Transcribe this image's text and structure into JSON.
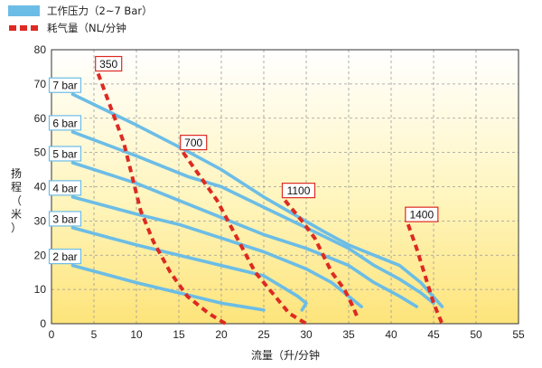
{
  "chart_data": {
    "type": "line",
    "xlabel": "流量（升/分钟",
    "ylabel": [
      "扬",
      "程",
      "（",
      "米",
      "）"
    ],
    "xlim": [
      0,
      55
    ],
    "ylim": [
      0,
      80
    ],
    "xticks": [
      0,
      5,
      10,
      15,
      20,
      25,
      30,
      35,
      40,
      45,
      50,
      55
    ],
    "yticks": [
      0,
      10,
      20,
      30,
      40,
      50,
      60,
      70,
      80
    ],
    "grid": "dashed, both axes",
    "background": "vertical gradient: white at top to yellow at bottom",
    "legend": {
      "position": "top-left, above plot",
      "items": [
        {
          "label": "工作压力（2~7 Bar）",
          "color": "#6cbde6",
          "style": "solid"
        },
        {
          "label": "耗气量（NL/分钟",
          "color": "#dd2a22",
          "style": "dashed"
        }
      ]
    },
    "pressure_series": [
      {
        "name": "7 bar",
        "color": "#6cbde6",
        "points": [
          [
            2.5,
            67
          ],
          [
            10,
            58
          ],
          [
            15.5,
            51
          ],
          [
            20,
            45
          ],
          [
            25,
            37
          ],
          [
            28.5,
            32
          ],
          [
            32,
            27
          ],
          [
            35,
            23
          ],
          [
            38,
            20
          ],
          [
            41,
            17
          ],
          [
            43.5,
            12
          ],
          [
            46,
            5
          ]
        ]
      },
      {
        "name": "6 bar",
        "color": "#6cbde6",
        "points": [
          [
            2.5,
            56
          ],
          [
            10,
            49
          ],
          [
            16,
            43
          ],
          [
            20,
            40
          ],
          [
            25,
            34
          ],
          [
            30,
            28
          ],
          [
            35,
            22
          ],
          [
            38,
            17
          ],
          [
            41,
            13
          ],
          [
            43.5,
            9
          ],
          [
            45,
            6
          ]
        ]
      },
      {
        "name": "5 bar",
        "color": "#6cbde6",
        "points": [
          [
            2.5,
            47
          ],
          [
            10,
            41
          ],
          [
            15,
            36
          ],
          [
            20,
            31
          ],
          [
            25,
            26
          ],
          [
            30,
            22
          ],
          [
            35,
            17
          ],
          [
            38,
            12
          ],
          [
            41,
            8
          ],
          [
            43,
            5
          ]
        ]
      },
      {
        "name": "4 bar",
        "color": "#6cbde6",
        "points": [
          [
            2.5,
            37
          ],
          [
            10,
            32
          ],
          [
            15,
            29
          ],
          [
            20,
            25
          ],
          [
            25,
            21
          ],
          [
            30,
            16
          ],
          [
            33,
            12
          ],
          [
            35,
            8
          ],
          [
            36.5,
            5
          ]
        ]
      },
      {
        "name": "3 bar",
        "color": "#6cbde6",
        "points": [
          [
            2.5,
            28
          ],
          [
            10,
            23
          ],
          [
            15,
            20
          ],
          [
            20,
            17
          ],
          [
            25,
            14
          ],
          [
            27,
            11
          ],
          [
            29,
            8
          ],
          [
            30,
            6
          ],
          [
            29.5,
            4
          ]
        ]
      },
      {
        "name": "2 bar",
        "color": "#6cbde6",
        "points": [
          [
            2.5,
            17
          ],
          [
            7,
            14
          ],
          [
            10,
            12
          ],
          [
            15,
            9
          ],
          [
            20,
            6
          ],
          [
            25,
            4
          ]
        ]
      }
    ],
    "consumption_series": [
      {
        "name": "350",
        "color": "#dd2a22",
        "points": [
          [
            5.5,
            73
          ],
          [
            7,
            63
          ],
          [
            8.5,
            53
          ],
          [
            9.5,
            43
          ],
          [
            10.5,
            33
          ],
          [
            12,
            24
          ],
          [
            14,
            15
          ],
          [
            16,
            8
          ],
          [
            18.5,
            3
          ],
          [
            20.5,
            0
          ]
        ]
      },
      {
        "name": "700",
        "color": "#dd2a22",
        "points": [
          [
            15.5,
            50
          ],
          [
            17.5,
            43
          ],
          [
            19.5,
            36
          ],
          [
            21,
            29
          ],
          [
            22.5,
            22
          ],
          [
            24,
            15
          ],
          [
            26,
            9
          ],
          [
            28,
            3
          ],
          [
            30,
            0
          ]
        ]
      },
      {
        "name": "1100",
        "color": "#dd2a22",
        "points": [
          [
            27.5,
            36
          ],
          [
            29.5,
            30
          ],
          [
            31,
            25
          ],
          [
            32,
            20
          ],
          [
            33,
            15
          ],
          [
            34.5,
            10
          ],
          [
            35.5,
            5
          ],
          [
            36,
            2
          ]
        ]
      },
      {
        "name": "1400",
        "color": "#dd2a22",
        "points": [
          [
            42,
            29
          ],
          [
            43,
            22
          ],
          [
            44,
            14
          ],
          [
            45,
            6
          ],
          [
            46,
            0
          ]
        ]
      }
    ]
  }
}
